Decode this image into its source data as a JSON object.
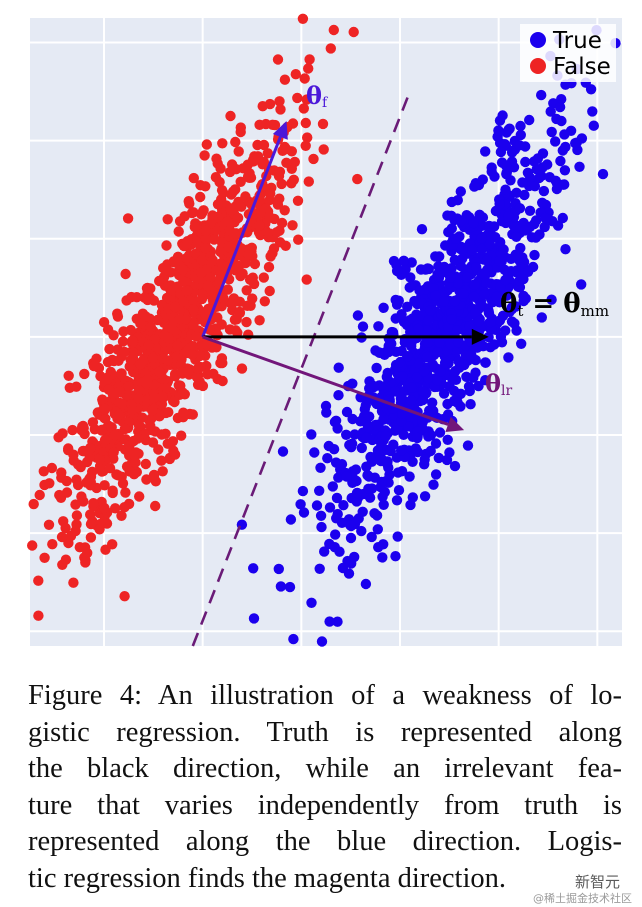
{
  "chart_data": {
    "type": "scatter",
    "title": "",
    "xlabel": "",
    "ylabel": "",
    "xlim": [
      -3.5,
      8.5
    ],
    "ylim": [
      -6.3,
      6.5
    ],
    "grid": true,
    "legend_placement": "top-right",
    "series": [
      {
        "name": "True",
        "color": "#1b00ee",
        "center": [
          4.9,
          0.1
        ],
        "spread_along": 2.3,
        "spread_across": 0.55,
        "orientation_deg": 62,
        "count": 1100
      },
      {
        "name": "False",
        "color": "#ee2424",
        "center": [
          -0.6,
          0.1
        ],
        "spread_along": 2.3,
        "spread_across": 0.55,
        "orientation_deg": 62,
        "count": 1100
      }
    ],
    "vectors": [
      {
        "label_main": "θ",
        "label_sub": "f",
        "from": [
          0,
          0
        ],
        "to": [
          1.7,
          4.4
        ],
        "color": "#4b18d9"
      },
      {
        "label_main": "θ",
        "label_sub": "t",
        "suffix_main": " = θ",
        "suffix_sub": "mm",
        "from": [
          0,
          0
        ],
        "to": [
          5.8,
          0
        ],
        "color": "#000000"
      },
      {
        "label_main": "θ",
        "label_sub": "lr",
        "from": [
          0,
          0
        ],
        "to": [
          5.3,
          -1.9
        ],
        "color": "#72167a"
      }
    ],
    "decision_boundary": {
      "style": "dashed",
      "color": "#6a1b77",
      "from": [
        -0.2,
        -6.3
      ],
      "to": [
        4.2,
        5.0
      ]
    }
  },
  "caption": {
    "lines": [
      "Figure 4: An illustration of a weakness of lo-",
      "gistic regression. Truth is represented along",
      "the black direction, while an irrelevant fea-",
      "ture that varies independently from truth is",
      "represented along the blue direction. Logis-",
      "tic regression finds the magenta direction."
    ]
  },
  "watermark": {
    "line1": "新智元",
    "line2": "@稀土掘金技术社区"
  }
}
